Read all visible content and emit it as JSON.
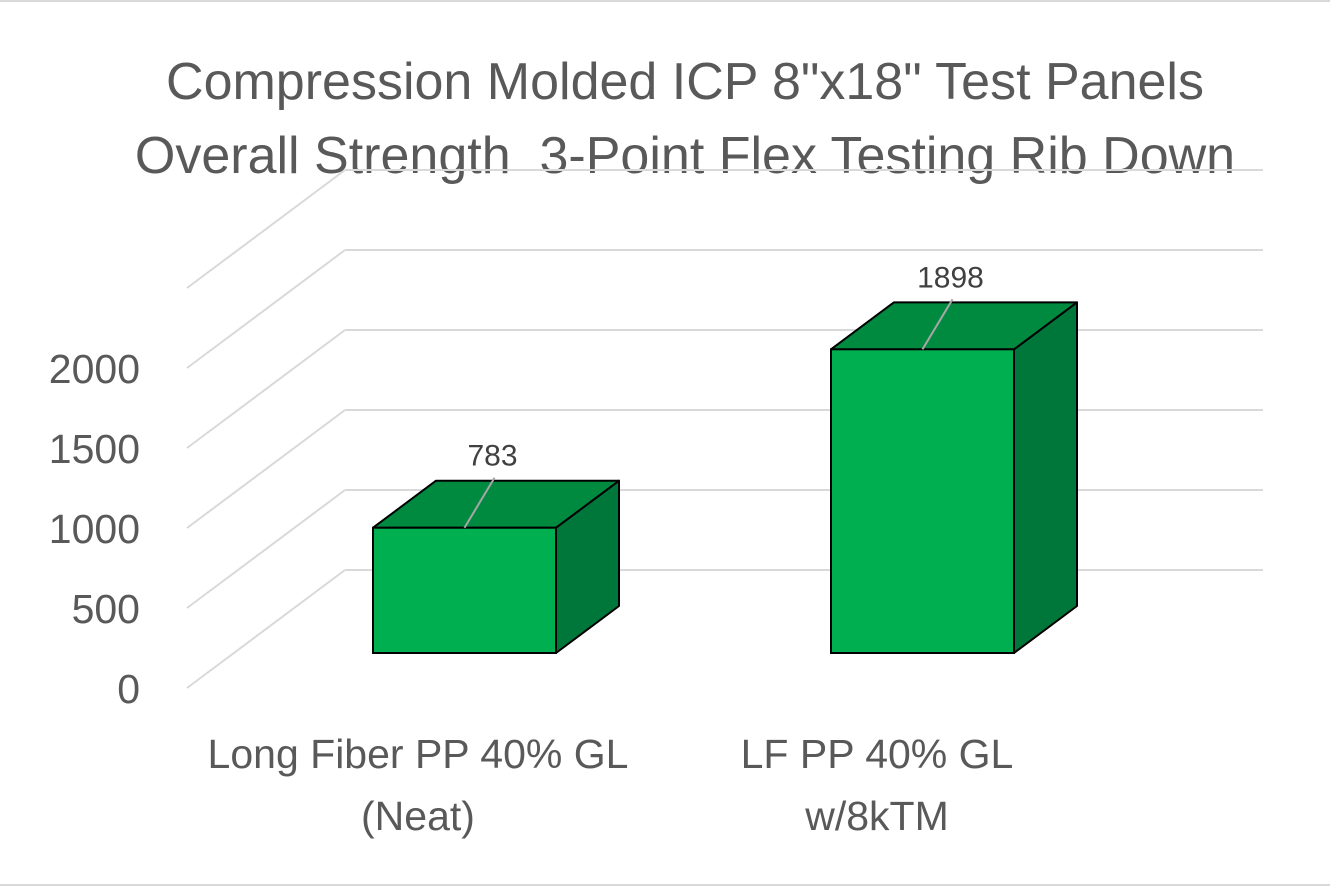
{
  "chart_data": {
    "type": "bar",
    "title_lines": [
      "Compression Molded ICP 8\"x18\" Test Panels",
      "Overall Strength  3-Point Flex Testing Rib Down"
    ],
    "categories": [
      [
        "Long Fiber PP 40% GL",
        "(Neat)"
      ],
      [
        "LF PP 40% GL",
        "w/8kTM"
      ]
    ],
    "values": [
      783,
      1898
    ],
    "data_labels": [
      "783",
      "1898"
    ],
    "yticks": [
      0,
      500,
      1000,
      1500,
      2000
    ],
    "ytick_labels": [
      "0",
      "500",
      "1000",
      "1500",
      "2000"
    ],
    "ylim": [
      0,
      2500
    ],
    "grid": true,
    "legend": "none",
    "style": "3d-column",
    "colors": {
      "front": "#00b050",
      "top": "#008a3f",
      "side": "#00773a",
      "grid": "#d9d9d9",
      "text": "#595959"
    }
  }
}
